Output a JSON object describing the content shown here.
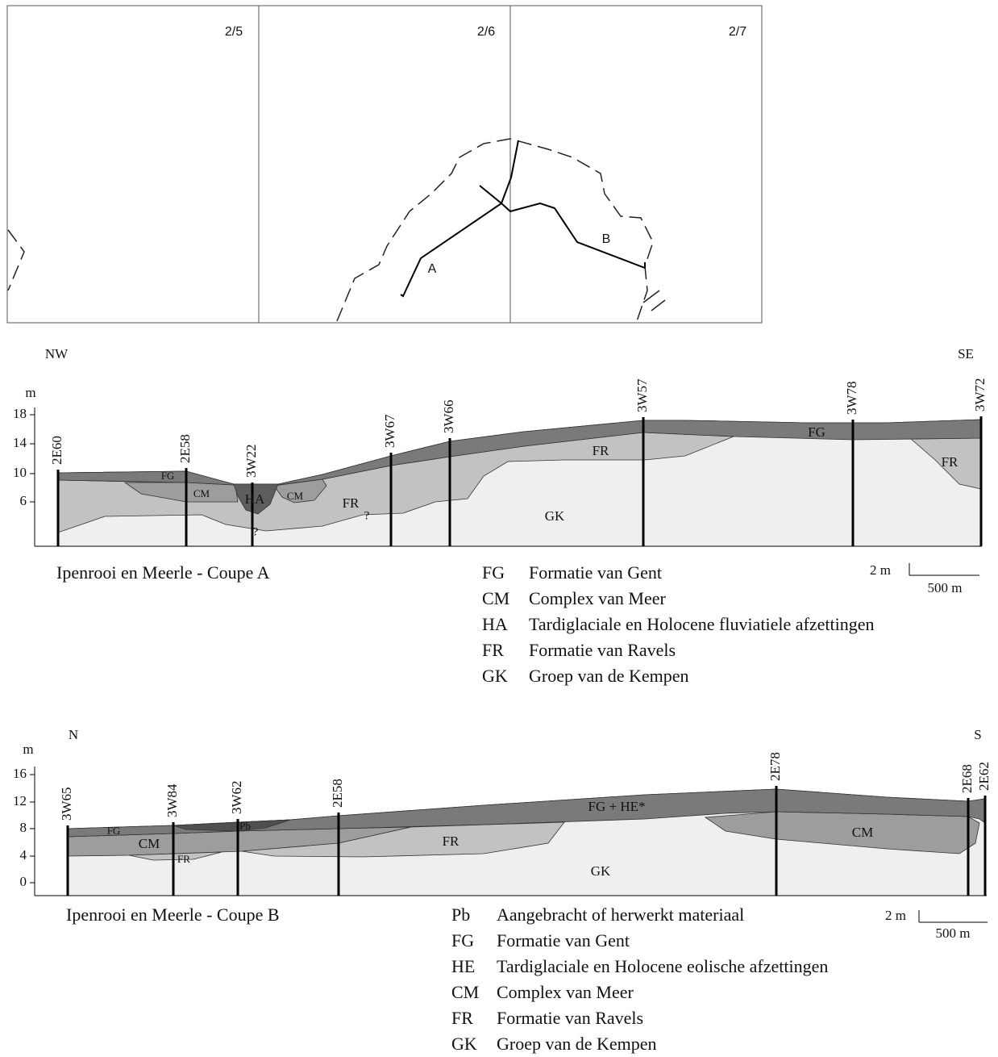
{
  "map": {
    "sheets": [
      "2/5",
      "2/6",
      "2/7"
    ],
    "line_labels": [
      "A",
      "B"
    ]
  },
  "section_a": {
    "directions": [
      "NW",
      "SE"
    ],
    "axis_unit": "m",
    "ticks": [
      "18",
      "14",
      "10",
      "6"
    ],
    "boreholes": [
      "2E60",
      "2E58",
      "3W22",
      "3W67",
      "3W66",
      "3W57",
      "3W78",
      "3W72"
    ],
    "unit_labels": [
      "FG",
      "CM",
      "CM",
      "HA",
      "FR",
      "?",
      "?",
      "FR",
      "GK",
      "FG",
      "FR"
    ],
    "title": "Ipenrooi en Meerle - Coupe A",
    "scale": [
      "2 m",
      "500 m"
    ],
    "legend": [
      {
        "code": "FG",
        "name": "Formatie van Gent"
      },
      {
        "code": "CM",
        "name": "Complex  van Meer"
      },
      {
        "code": "HA",
        "name": "Tardiglaciale en Holocene fluviatiele afzettingen"
      },
      {
        "code": "FR",
        "name": "Formatie van Ravels"
      },
      {
        "code": "GK",
        "name": "Groep van de Kempen"
      }
    ]
  },
  "section_b": {
    "directions": [
      "N",
      "S"
    ],
    "axis_unit": "m",
    "ticks": [
      "16",
      "12",
      "8",
      "4",
      "0"
    ],
    "boreholes": [
      "3W65",
      "3W84",
      "3W62",
      "2E58",
      "2E78",
      "2E68",
      "2E62"
    ],
    "unit_labels": [
      "FG",
      "CM",
      "FR",
      "Pb",
      "FG + HE*",
      "FR",
      "GK",
      "CM"
    ],
    "title": "Ipenrooi en Meerle - Coupe B",
    "scale": [
      "2 m",
      "500 m"
    ],
    "legend": [
      {
        "code": "Pb",
        "name": "Aangebracht of herwerkt materiaal"
      },
      {
        "code": "FG",
        "name": "Formatie van Gent"
      },
      {
        "code": "HE",
        "name": "Tardiglaciale en Holocene eolische afzettingen"
      },
      {
        "code": "CM",
        "name": "Complex  van Meer"
      },
      {
        "code": "FR",
        "name": "Formatie van Ravels"
      },
      {
        "code": "GK",
        "name": "Groep van de Kempen"
      }
    ]
  }
}
